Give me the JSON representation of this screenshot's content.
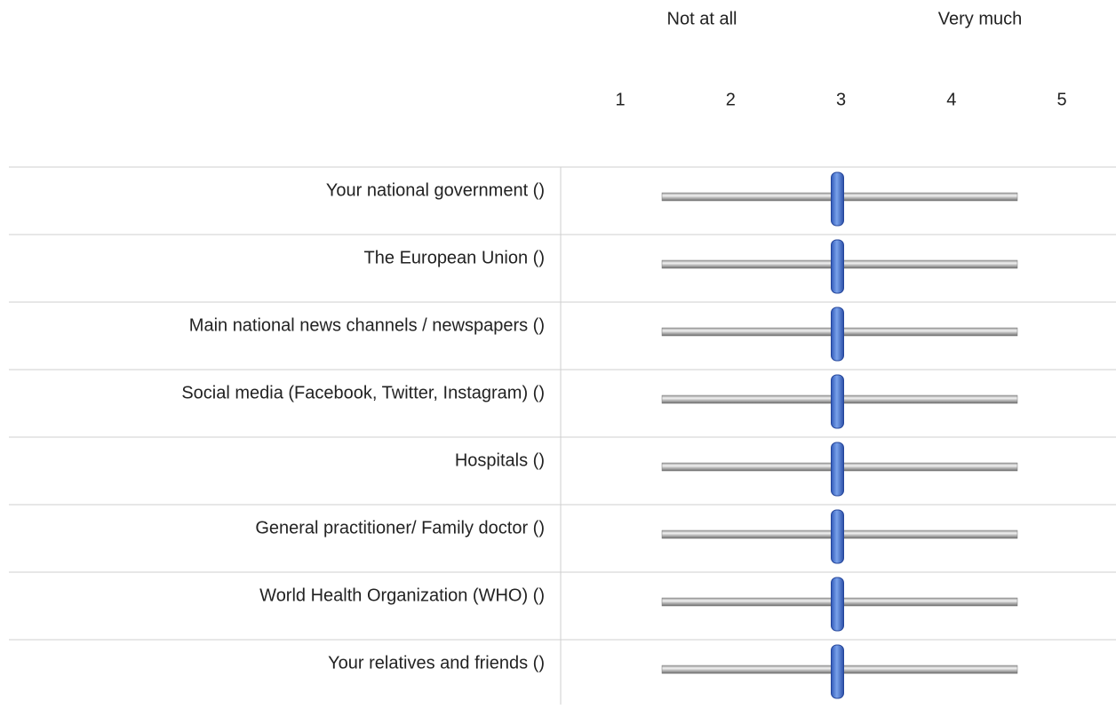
{
  "scale": {
    "min_label": "Not at all",
    "max_label": "Very much",
    "points": [
      1,
      2,
      3,
      4,
      5
    ]
  },
  "rows": [
    {
      "label": "Your national government ()",
      "value": 3
    },
    {
      "label": "The European Union ()",
      "value": 3
    },
    {
      "label": "Main national news channels / newspapers ()",
      "value": 3
    },
    {
      "label": "Social media (Facebook, Twitter, Instagram) ()",
      "value": 3
    },
    {
      "label": "Hospitals ()",
      "value": 3
    },
    {
      "label": "General practitioner/ Family doctor ()",
      "value": 3
    },
    {
      "label": "World Health Organization (WHO) ()",
      "value": 3
    },
    {
      "label": "Your relatives and friends ()",
      "value": 3
    }
  ]
}
